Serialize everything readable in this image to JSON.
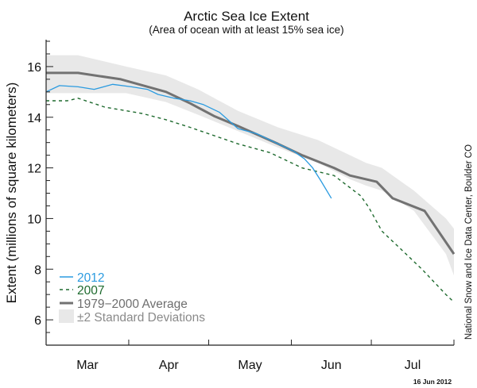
{
  "chart_data": {
    "type": "line",
    "title": "Arctic Sea Ice Extent",
    "subtitle": "(Area of ocean with at least 15% sea ice)",
    "xlabel": "",
    "ylabel": "Extent (millions of square kilometers)",
    "ylim": [
      5,
      17
    ],
    "y_major_ticks": [
      6,
      8,
      10,
      12,
      14,
      16
    ],
    "y_minor_step": 0.5,
    "x_unit": "days since Mar 1",
    "xlim": [
      0,
      153
    ],
    "x_month_boundaries": [
      0,
      31,
      61,
      92,
      122,
      153
    ],
    "x_tick_labels": [
      {
        "label": "Mar",
        "day": 15.5
      },
      {
        "label": "Apr",
        "day": 46
      },
      {
        "label": "May",
        "day": 76.5
      },
      {
        "label": "Jun",
        "day": 107
      },
      {
        "label": "Jul",
        "day": 137.5
      }
    ],
    "grid": false,
    "legend_position": "bottom-left",
    "series": [
      {
        "name": "2012",
        "style": "solid",
        "color": "#2b9be0",
        "x": [
          0,
          5,
          12,
          18,
          25,
          32,
          38,
          42,
          48,
          54,
          59,
          65,
          72,
          79,
          86,
          93,
          97,
          100,
          103,
          107
        ],
        "values": [
          15.0,
          15.25,
          15.2,
          15.1,
          15.3,
          15.2,
          15.1,
          14.9,
          14.75,
          14.65,
          14.5,
          14.2,
          13.55,
          13.35,
          13.0,
          12.65,
          12.35,
          12.0,
          11.5,
          10.8
        ]
      },
      {
        "name": "2007",
        "style": "dashed",
        "color": "#1e6a2e",
        "x": [
          0,
          8,
          12,
          22,
          36,
          45,
          54,
          72,
          84,
          96,
          108,
          118,
          121,
          126,
          132,
          141,
          150,
          153
        ],
        "values": [
          14.65,
          14.65,
          14.75,
          14.4,
          14.15,
          13.9,
          13.6,
          12.95,
          12.6,
          12.0,
          11.7,
          10.9,
          10.45,
          9.5,
          8.9,
          8.0,
          7.0,
          6.7
        ]
      },
      {
        "name": "1979−2000 Average",
        "style": "solid-thick",
        "color": "#727272",
        "x": [
          0,
          12,
          28,
          45,
          54,
          63,
          72,
          87,
          96,
          108,
          114,
          124,
          130,
          142,
          153
        ],
        "values": [
          15.75,
          15.75,
          15.5,
          15.0,
          14.55,
          14.05,
          13.65,
          12.95,
          12.5,
          12.0,
          11.7,
          11.45,
          10.8,
          10.3,
          8.6
        ]
      }
    ],
    "band": {
      "name": "±2 Standard Deviations",
      "color": "#e8e8e8",
      "x": [
        0,
        12,
        30,
        45,
        57,
        72,
        87,
        102,
        114,
        120,
        126,
        138,
        150,
        153
      ],
      "upper": [
        16.45,
        16.45,
        16.0,
        15.65,
        15.1,
        14.25,
        13.6,
        13.1,
        12.5,
        12.2,
        12.0,
        11.1,
        10.0,
        9.6
      ],
      "lower": [
        14.95,
        14.95,
        14.95,
        14.6,
        14.1,
        13.45,
        12.8,
        12.2,
        11.55,
        11.3,
        11.1,
        10.3,
        8.6,
        7.75
      ]
    },
    "annotations": {
      "credit": "National Snow and Ice Data Center, Boulder CO",
      "date": "16 Jun 2012"
    }
  },
  "legend": [
    {
      "label": "2012",
      "color": "#2b9be0"
    },
    {
      "label": "2007",
      "color": "#1e6a2e"
    },
    {
      "label": "1979−2000 Average",
      "color": "#6e6e6e"
    },
    {
      "label": "±2 Standard Deviations",
      "color": "#8a8a8a"
    }
  ]
}
